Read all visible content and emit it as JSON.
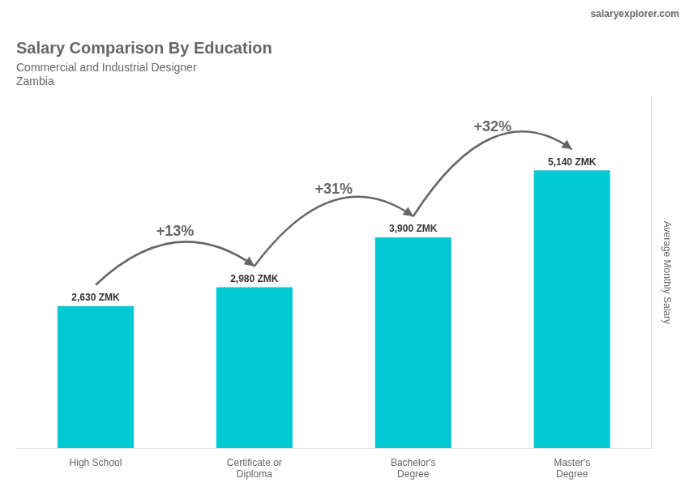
{
  "chart_data": {
    "type": "bar",
    "title": "Salary Comparison By Education",
    "subtitle": [
      "Commercial and Industrial Designer",
      "Zambia"
    ],
    "watermark": "salaryexplorer.com",
    "ylabel": "Average Monthly Salary",
    "categories": [
      "High School",
      "Certificate or\nDiploma",
      "Bachelor's\nDegree",
      "Master's\nDegree"
    ],
    "values": [
      2630,
      2980,
      3900,
      5140
    ],
    "value_labels": [
      "2,630 ZMK",
      "2,980 ZMK",
      "3,900 ZMK",
      "5,140 ZMK"
    ],
    "data_labels": true,
    "color": "#00c8d4",
    "ylim": [
      0,
      6500
    ],
    "tick_labels": "x",
    "grid": false,
    "annotations": [
      {
        "text": "+13%",
        "from": "High School",
        "to": "Certificate or\nDiploma"
      },
      {
        "text": "+31%",
        "from": "Certificate or\nDiploma",
        "to": "Bachelor's\nDegree"
      },
      {
        "text": "+32%",
        "from": "Bachelor's\nDegree",
        "to": "Master's\nDegree"
      }
    ]
  }
}
